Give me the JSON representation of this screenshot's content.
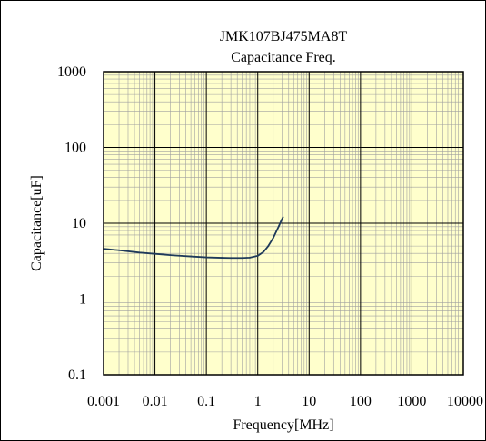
{
  "chart_data": {
    "type": "line",
    "title": "JMK107BJ475MA8T",
    "subtitle": "Capacitance Freq.",
    "xlabel": "Frequency[MHz]",
    "ylabel": "Capacitance[uF]",
    "x_scale": "log",
    "y_scale": "log",
    "xlim": [
      0.001,
      10000
    ],
    "ylim": [
      0.1,
      1000
    ],
    "x_tick_labels": [
      "0.001",
      "0.01",
      "0.1",
      "1",
      "10",
      "100",
      "1000",
      "10000"
    ],
    "y_tick_labels": [
      "1000",
      "100",
      "10",
      "1",
      "0.1"
    ],
    "grid": true,
    "plot_background": "#FFFFCC",
    "series": [
      {
        "color": "#1F3A5A",
        "x": [
          0.001,
          0.002,
          0.005,
          0.01,
          0.02,
          0.05,
          0.1,
          0.2,
          0.3,
          0.5,
          0.7,
          1.0,
          1.3,
          1.6,
          2.0,
          2.3,
          2.6,
          2.9,
          3.1
        ],
        "y": [
          4.6,
          4.4,
          4.1,
          3.95,
          3.8,
          3.65,
          3.55,
          3.5,
          3.48,
          3.48,
          3.52,
          3.72,
          4.2,
          5.0,
          6.4,
          7.8,
          9.3,
          11.0,
          12.0
        ]
      }
    ]
  }
}
